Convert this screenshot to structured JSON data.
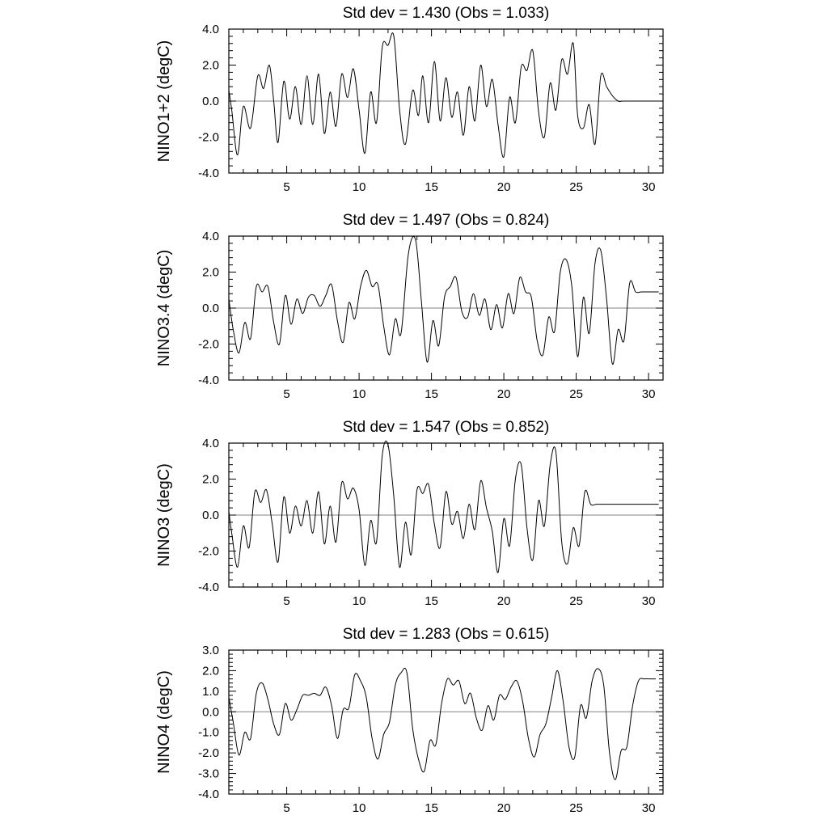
{
  "chart_data": [
    {
      "type": "line",
      "title": "Std dev = 1.430 (Obs = 1.033)",
      "ylabel": "NINO1+2 (degC)",
      "xlim": [
        1,
        31
      ],
      "ylim": [
        -4,
        4
      ],
      "xticks": [
        5,
        10,
        15,
        20,
        25,
        30
      ],
      "yticks": [
        -4,
        -2,
        0,
        2,
        4
      ],
      "yticklabels": [
        "-4.0",
        "-2.0",
        "0.0",
        "2.0",
        "4.0"
      ],
      "reference_line": 0,
      "series": [
        {
          "x": [
            1.0,
            1.2,
            1.6,
            2.0,
            2.5,
            3.0,
            3.4,
            3.8,
            4.1,
            4.4,
            4.8,
            5.2,
            5.6,
            6.0,
            6.4,
            6.8,
            7.2,
            7.6,
            8.0,
            8.4,
            8.8,
            9.2,
            9.6,
            10.0,
            10.4,
            10.8,
            11.2,
            11.6,
            12.0,
            12.4,
            12.8,
            13.2,
            13.7,
            14.1,
            14.4,
            14.8,
            15.2,
            15.6,
            16.0,
            16.4,
            16.8,
            17.2,
            17.6,
            18.0,
            18.4,
            18.8,
            19.2,
            19.6,
            20.0,
            20.4,
            20.8,
            21.2,
            21.6,
            22.0,
            22.4,
            22.8,
            23.2,
            23.6,
            24.0,
            24.4,
            24.8,
            25.1,
            25.5,
            25.9,
            26.3,
            26.7,
            27.1,
            27.5,
            27.9,
            28.2,
            28.6,
            29.0,
            29.4,
            29.8,
            30.2,
            30.5
          ],
          "y": [
            0.6,
            -0.5,
            -3.0,
            -0.3,
            -1.5,
            1.4,
            0.7,
            2.0,
            0.0,
            -2.3,
            1.1,
            -1.0,
            0.8,
            -1.3,
            1.4,
            -1.3,
            1.5,
            -1.8,
            0.5,
            -1.4,
            1.5,
            0.2,
            1.8,
            -0.5,
            -2.9,
            0.5,
            -1.2,
            3.0,
            3.1,
            3.6,
            -0.5,
            -2.4,
            0.6,
            -0.8,
            1.4,
            -1.2,
            2.2,
            -1.1,
            1.3,
            -0.9,
            0.5,
            -1.9,
            0.8,
            -1.1,
            2.0,
            -0.3,
            1.2,
            -1.3,
            -3.1,
            0.2,
            -1.2,
            1.9,
            1.7,
            2.8,
            -0.6,
            -2.0,
            1.0,
            -0.5,
            2.3,
            1.5,
            3.2,
            -0.8,
            -1.5,
            -0.2,
            -2.4,
            1.4,
            0.8,
            0.3,
            0.0,
            0.0,
            0.0,
            0.0,
            0.0,
            0.0,
            0.0,
            0.0
          ]
        }
      ]
    },
    {
      "type": "line",
      "title": "Std dev = 1.497 (Obs = 0.824)",
      "ylabel": "NINO3.4 (degC)",
      "xlim": [
        1,
        31
      ],
      "ylim": [
        -4,
        4
      ],
      "xticks": [
        5,
        10,
        15,
        20,
        25,
        30
      ],
      "yticks": [
        -4,
        -2,
        0,
        2,
        4
      ],
      "yticklabels": [
        "-4.0",
        "-2.0",
        "0.0",
        "2.0",
        "4.0"
      ],
      "reference_line": 0,
      "series": [
        {
          "x": [
            1.0,
            1.3,
            1.7,
            2.1,
            2.5,
            2.9,
            3.3,
            3.7,
            4.1,
            4.5,
            4.9,
            5.3,
            5.7,
            6.1,
            6.5,
            6.9,
            7.3,
            7.7,
            8.1,
            8.5,
            8.9,
            9.3,
            9.7,
            10.1,
            10.5,
            10.9,
            11.3,
            11.7,
            12.1,
            12.5,
            12.9,
            13.4,
            13.9,
            14.3,
            14.7,
            15.1,
            15.5,
            15.9,
            16.3,
            16.7,
            17.1,
            17.5,
            17.9,
            18.3,
            18.7,
            19.1,
            19.5,
            19.9,
            20.3,
            20.7,
            21.1,
            21.5,
            21.9,
            22.3,
            22.7,
            23.1,
            23.5,
            23.9,
            24.3,
            24.7,
            25.1,
            25.5,
            25.9,
            26.3,
            26.7,
            27.1,
            27.5,
            27.9,
            28.3,
            28.7,
            29.1,
            29.5,
            29.9,
            30.3,
            30.7
          ],
          "y": [
            0.5,
            -1.2,
            -2.5,
            -0.8,
            -1.7,
            1.2,
            0.9,
            1.2,
            -0.8,
            -2.0,
            0.7,
            -0.9,
            0.5,
            -0.3,
            0.6,
            0.7,
            0.1,
            0.7,
            1.3,
            -0.7,
            -1.9,
            0.3,
            -0.6,
            1.2,
            2.1,
            1.2,
            1.3,
            -1.0,
            -2.6,
            -0.6,
            -1.4,
            3.0,
            3.8,
            0.4,
            -3.0,
            -0.7,
            -2.1,
            0.6,
            1.2,
            1.7,
            -0.2,
            -0.5,
            0.8,
            -0.4,
            0.5,
            -1.2,
            0.2,
            -1.1,
            0.8,
            -0.3,
            1.7,
            0.9,
            0.6,
            -1.8,
            -2.6,
            -0.5,
            -1.3,
            2.0,
            2.7,
            1.2,
            -2.7,
            0.6,
            -1.4,
            2.5,
            3.2,
            0.5,
            -3.1,
            -1.2,
            -1.8,
            1.4,
            0.9,
            0.9,
            0.9,
            0.9,
            0.9
          ],
          "_note_trim": 0
        }
      ]
    },
    {
      "type": "line",
      "title": "Std dev = 1.547 (Obs = 0.852)",
      "ylabel": "NINO3 (degC)",
      "xlim": [
        1,
        31
      ],
      "ylim": [
        -4,
        4
      ],
      "xticks": [
        5,
        10,
        15,
        20,
        25,
        30
      ],
      "yticks": [
        -4,
        -2,
        0,
        2,
        4
      ],
      "yticklabels": [
        "-4.0",
        "-2.0",
        "0.0",
        "2.0",
        "4.0"
      ],
      "reference_line": 0,
      "series": [
        {
          "x": [
            1.0,
            1.2,
            1.6,
            2.0,
            2.4,
            2.8,
            3.2,
            3.6,
            4.0,
            4.4,
            4.8,
            5.2,
            5.6,
            6.0,
            6.4,
            6.8,
            7.2,
            7.6,
            8.0,
            8.4,
            8.8,
            9.2,
            9.6,
            10.0,
            10.4,
            10.8,
            11.2,
            11.6,
            12.0,
            12.4,
            12.8,
            13.2,
            13.6,
            14.0,
            14.4,
            14.8,
            15.2,
            15.6,
            16.0,
            16.4,
            16.8,
            17.2,
            17.6,
            18.0,
            18.4,
            18.8,
            19.2,
            19.6,
            20.0,
            20.4,
            20.8,
            21.2,
            21.6,
            22.0,
            22.4,
            22.8,
            23.2,
            23.6,
            24.0,
            24.4,
            24.8,
            25.2,
            25.6,
            26.0,
            26.4,
            26.8,
            27.2,
            27.6,
            28.0,
            28.4,
            28.8,
            29.2,
            29.6,
            30.0,
            30.4,
            30.7
          ],
          "y": [
            0.2,
            -1.0,
            -2.9,
            -0.6,
            -1.8,
            1.3,
            0.7,
            1.4,
            -0.5,
            -2.6,
            1.0,
            -1.0,
            0.5,
            -0.6,
            0.8,
            -1.0,
            1.3,
            -1.6,
            0.5,
            -1.5,
            1.8,
            0.9,
            1.5,
            0.3,
            -2.8,
            -0.3,
            -1.5,
            3.3,
            3.9,
            1.0,
            -2.9,
            -0.4,
            -2.2,
            1.4,
            1.2,
            1.7,
            -0.5,
            -1.8,
            1.3,
            -0.5,
            0.2,
            -1.3,
            0.6,
            -0.8,
            1.9,
            0.4,
            -0.9,
            -3.2,
            -0.2,
            -1.7,
            2.0,
            2.8,
            -0.7,
            -2.5,
            0.8,
            -0.6,
            2.8,
            3.5,
            -1.5,
            -2.7,
            -0.7,
            -1.7,
            1.3,
            0.6,
            0.6,
            0.6,
            0.6,
            0.6,
            0.6,
            0.6,
            0.6,
            0.6,
            0.6,
            0.6,
            0.6,
            0.6
          ]
        }
      ]
    },
    {
      "type": "line",
      "title": "Std dev = 1.283 (Obs = 0.615)",
      "ylabel": "NINO4 (degC)",
      "xlim": [
        1,
        31
      ],
      "ylim": [
        -4,
        3
      ],
      "xticks": [
        5,
        10,
        15,
        20,
        25,
        30
      ],
      "yticks": [
        -4,
        -3,
        -2,
        -1,
        0,
        1,
        2,
        3
      ],
      "yticklabels": [
        "-4.0",
        "-3.0",
        "-2.0",
        "-1.0",
        "0.0",
        "1.0",
        "2.0",
        "3.0"
      ],
      "reference_line": 0,
      "series": [
        {
          "x": [
            1.0,
            1.3,
            1.7,
            2.1,
            2.5,
            2.9,
            3.3,
            3.7,
            4.1,
            4.5,
            4.9,
            5.3,
            5.7,
            6.1,
            6.5,
            6.9,
            7.3,
            7.7,
            8.1,
            8.5,
            8.9,
            9.3,
            9.7,
            10.1,
            10.5,
            10.9,
            11.3,
            11.7,
            12.1,
            12.5,
            12.9,
            13.3,
            13.7,
            14.1,
            14.5,
            14.9,
            15.3,
            15.7,
            16.1,
            16.5,
            16.9,
            17.3,
            17.7,
            18.1,
            18.5,
            18.9,
            19.3,
            19.7,
            20.1,
            20.5,
            20.9,
            21.3,
            21.7,
            22.1,
            22.5,
            22.9,
            23.3,
            23.7,
            24.1,
            24.5,
            24.9,
            25.3,
            25.7,
            26.1,
            26.5,
            26.9,
            27.3,
            27.7,
            28.1,
            28.5,
            28.9,
            29.3,
            29.7,
            30.1,
            30.5
          ],
          "y": [
            0.7,
            -0.5,
            -2.1,
            -1.0,
            -1.3,
            0.9,
            1.4,
            0.6,
            -0.6,
            -1.1,
            0.4,
            -0.4,
            0.1,
            0.8,
            0.8,
            0.9,
            0.8,
            1.2,
            0.3,
            -1.3,
            0.1,
            0.2,
            1.8,
            1.5,
            0.7,
            -1.3,
            -2.3,
            -1.1,
            -0.5,
            1.3,
            1.9,
            1.9,
            -0.8,
            -2.3,
            -2.9,
            -1.4,
            -1.6,
            0.4,
            1.6,
            1.3,
            1.5,
            0.4,
            0.9,
            -0.3,
            -0.9,
            0.3,
            -0.4,
            0.8,
            0.6,
            1.2,
            1.5,
            0.5,
            -1.3,
            -2.2,
            -1.1,
            -0.6,
            0.7,
            2.0,
            0.5,
            -1.7,
            -2.2,
            0.3,
            -0.3,
            1.5,
            2.1,
            1.3,
            -2.0,
            -3.3,
            -1.9,
            -1.7,
            0.3,
            1.5,
            1.6,
            1.6,
            1.6
          ]
        }
      ]
    }
  ]
}
